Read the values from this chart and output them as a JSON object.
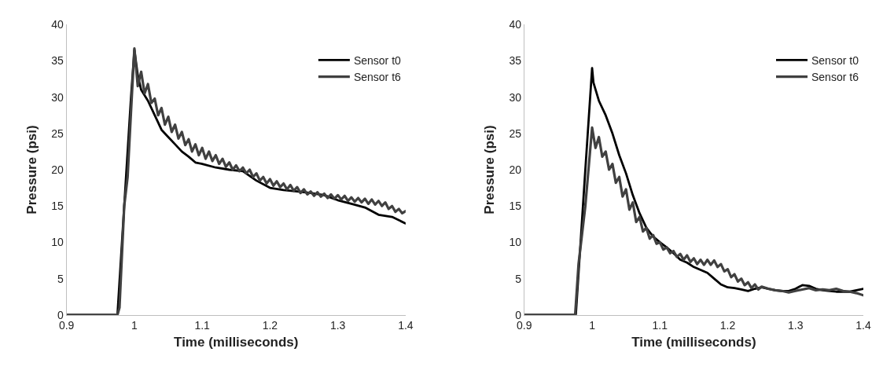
{
  "chart_data": [
    {
      "type": "line",
      "xlabel": "Time (milliseconds)",
      "ylabel": "Pressure (psi)",
      "xlim": [
        0.9,
        1.4
      ],
      "xticks": [
        0.9,
        1,
        1.1,
        1.2,
        1.3,
        1.4
      ],
      "ylim": [
        0,
        40
      ],
      "yticks": [
        0,
        5,
        10,
        15,
        20,
        25,
        30,
        35,
        40
      ],
      "grid": false,
      "legend": "top right",
      "marker": "none",
      "line_style": "solid",
      "series": [
        {
          "name": "Sensor t0",
          "color": "#000000",
          "x": [
            0.9,
            0.975,
            0.985,
            0.995,
            1.0,
            1.005,
            1.01,
            1.02,
            1.03,
            1.04,
            1.05,
            1.06,
            1.07,
            1.08,
            1.09,
            1.1,
            1.12,
            1.14,
            1.16,
            1.18,
            1.2,
            1.22,
            1.24,
            1.26,
            1.28,
            1.3,
            1.32,
            1.34,
            1.36,
            1.38,
            1.4
          ],
          "values": [
            0,
            0,
            15,
            30,
            36.5,
            33,
            31,
            29.5,
            27.5,
            25.5,
            24.5,
            23.5,
            22.5,
            21.8,
            21,
            20.8,
            20.3,
            20,
            19.8,
            18.5,
            17.5,
            17.2,
            17,
            16.8,
            16.5,
            15.8,
            15.3,
            14.8,
            13.8,
            13.5,
            12.6
          ]
        },
        {
          "name": "Sensor t6",
          "color": "#404040",
          "x": [
            0.9,
            0.975,
            0.978,
            0.985,
            0.99,
            0.995,
            1.0,
            1.005,
            1.01,
            1.015,
            1.02,
            1.025,
            1.03,
            1.035,
            1.04,
            1.045,
            1.05,
            1.055,
            1.06,
            1.065,
            1.07,
            1.075,
            1.08,
            1.085,
            1.09,
            1.095,
            1.1,
            1.105,
            1.11,
            1.115,
            1.12,
            1.125,
            1.13,
            1.135,
            1.14,
            1.145,
            1.15,
            1.155,
            1.16,
            1.165,
            1.17,
            1.175,
            1.18,
            1.185,
            1.19,
            1.195,
            1.2,
            1.205,
            1.21,
            1.215,
            1.22,
            1.225,
            1.23,
            1.235,
            1.24,
            1.245,
            1.25,
            1.255,
            1.26,
            1.265,
            1.27,
            1.275,
            1.28,
            1.285,
            1.29,
            1.295,
            1.3,
            1.305,
            1.31,
            1.315,
            1.32,
            1.325,
            1.33,
            1.335,
            1.34,
            1.345,
            1.35,
            1.355,
            1.36,
            1.365,
            1.37,
            1.375,
            1.38,
            1.385,
            1.39,
            1.395,
            1.4
          ],
          "values": [
            0,
            0,
            1,
            15,
            19,
            28,
            36.7,
            31.5,
            33.5,
            30.5,
            31.8,
            29.2,
            29.8,
            27.5,
            28.5,
            26.2,
            27.3,
            25.2,
            26.2,
            24.3,
            25.2,
            23.4,
            24.2,
            22.5,
            23.5,
            22,
            23,
            21.5,
            22.5,
            21.2,
            22,
            20.8,
            21.5,
            20.4,
            21,
            20,
            20.6,
            19.8,
            20.3,
            19.5,
            20,
            19,
            19.5,
            18.5,
            19,
            18.1,
            18.7,
            17.8,
            18.4,
            17.6,
            18.1,
            17.3,
            17.9,
            17.1,
            17.6,
            16.8,
            17.3,
            16.6,
            17,
            16.4,
            16.9,
            16.3,
            16.7,
            16.1,
            16.6,
            16,
            16.5,
            15.9,
            16.4,
            15.7,
            16.2,
            15.6,
            16.1,
            15.5,
            16,
            15.3,
            15.9,
            15.2,
            15.7,
            15,
            15.5,
            14.6,
            15,
            14.2,
            14.6,
            14,
            14.3
          ]
        }
      ]
    },
    {
      "type": "line",
      "xlabel": "Time (milliseconds)",
      "ylabel": "Pressure (psi)",
      "xlim": [
        0.9,
        1.4
      ],
      "xticks": [
        0.9,
        1,
        1.1,
        1.2,
        1.3,
        1.4
      ],
      "ylim": [
        0,
        40
      ],
      "yticks": [
        0,
        5,
        10,
        15,
        20,
        25,
        30,
        35,
        40
      ],
      "grid": false,
      "legend": "top right",
      "marker": "none",
      "line_style": "solid",
      "series": [
        {
          "name": "Sensor t0",
          "color": "#000000",
          "x": [
            0.9,
            0.976,
            0.99,
            1.0,
            1.002,
            1.01,
            1.02,
            1.03,
            1.04,
            1.05,
            1.06,
            1.07,
            1.08,
            1.09,
            1.1,
            1.11,
            1.12,
            1.13,
            1.14,
            1.15,
            1.16,
            1.17,
            1.18,
            1.19,
            1.2,
            1.21,
            1.22,
            1.23,
            1.24,
            1.25,
            1.26,
            1.27,
            1.28,
            1.29,
            1.3,
            1.31,
            1.32,
            1.33,
            1.34,
            1.35,
            1.36,
            1.37,
            1.38,
            1.39,
            1.4
          ],
          "values": [
            0,
            0,
            20,
            34,
            32,
            29.5,
            27.5,
            25,
            22,
            19.5,
            16.5,
            14,
            12,
            10.8,
            10,
            9.3,
            8.5,
            7.6,
            7.2,
            6.6,
            6.2,
            5.8,
            5,
            4.2,
            3.8,
            3.7,
            3.5,
            3.3,
            3.6,
            3.8,
            3.6,
            3.4,
            3.3,
            3.3,
            3.6,
            4.1,
            4,
            3.6,
            3.4,
            3.3,
            3.2,
            3.2,
            3.2,
            3.4,
            3.6
          ]
        },
        {
          "name": "Sensor t6",
          "color": "#404040",
          "x": [
            0.9,
            0.975,
            0.98,
            0.99,
            1.0,
            1.005,
            1.01,
            1.015,
            1.02,
            1.025,
            1.03,
            1.035,
            1.04,
            1.045,
            1.05,
            1.055,
            1.06,
            1.065,
            1.07,
            1.075,
            1.08,
            1.085,
            1.09,
            1.095,
            1.1,
            1.105,
            1.11,
            1.115,
            1.12,
            1.125,
            1.13,
            1.135,
            1.14,
            1.145,
            1.15,
            1.155,
            1.16,
            1.165,
            1.17,
            1.175,
            1.18,
            1.185,
            1.19,
            1.195,
            1.2,
            1.205,
            1.21,
            1.215,
            1.22,
            1.225,
            1.23,
            1.235,
            1.24,
            1.245,
            1.25,
            1.26,
            1.27,
            1.28,
            1.29,
            1.3,
            1.31,
            1.32,
            1.33,
            1.34,
            1.35,
            1.36,
            1.37,
            1.38,
            1.39,
            1.4
          ],
          "values": [
            0,
            0,
            7,
            15,
            25.8,
            23,
            24.5,
            21.8,
            22.5,
            20,
            20.8,
            18.2,
            19,
            16.3,
            17.3,
            14.5,
            15.5,
            12.8,
            13.5,
            11.5,
            12,
            10.5,
            11,
            9.8,
            10,
            9,
            9.3,
            8.5,
            8.8,
            8,
            8.4,
            7.6,
            8.2,
            7.3,
            7.8,
            7,
            7.6,
            6.9,
            7.6,
            6.9,
            7.5,
            6.6,
            7,
            6,
            6.3,
            5.2,
            5.6,
            4.6,
            5,
            4.1,
            4.5,
            3.7,
            4.2,
            3.5,
            3.9,
            3.6,
            3.4,
            3.3,
            3.1,
            3.3,
            3.5,
            3.7,
            3.4,
            3.5,
            3.4,
            3.6,
            3.3,
            3.2,
            3,
            2.7
          ]
        }
      ]
    }
  ]
}
